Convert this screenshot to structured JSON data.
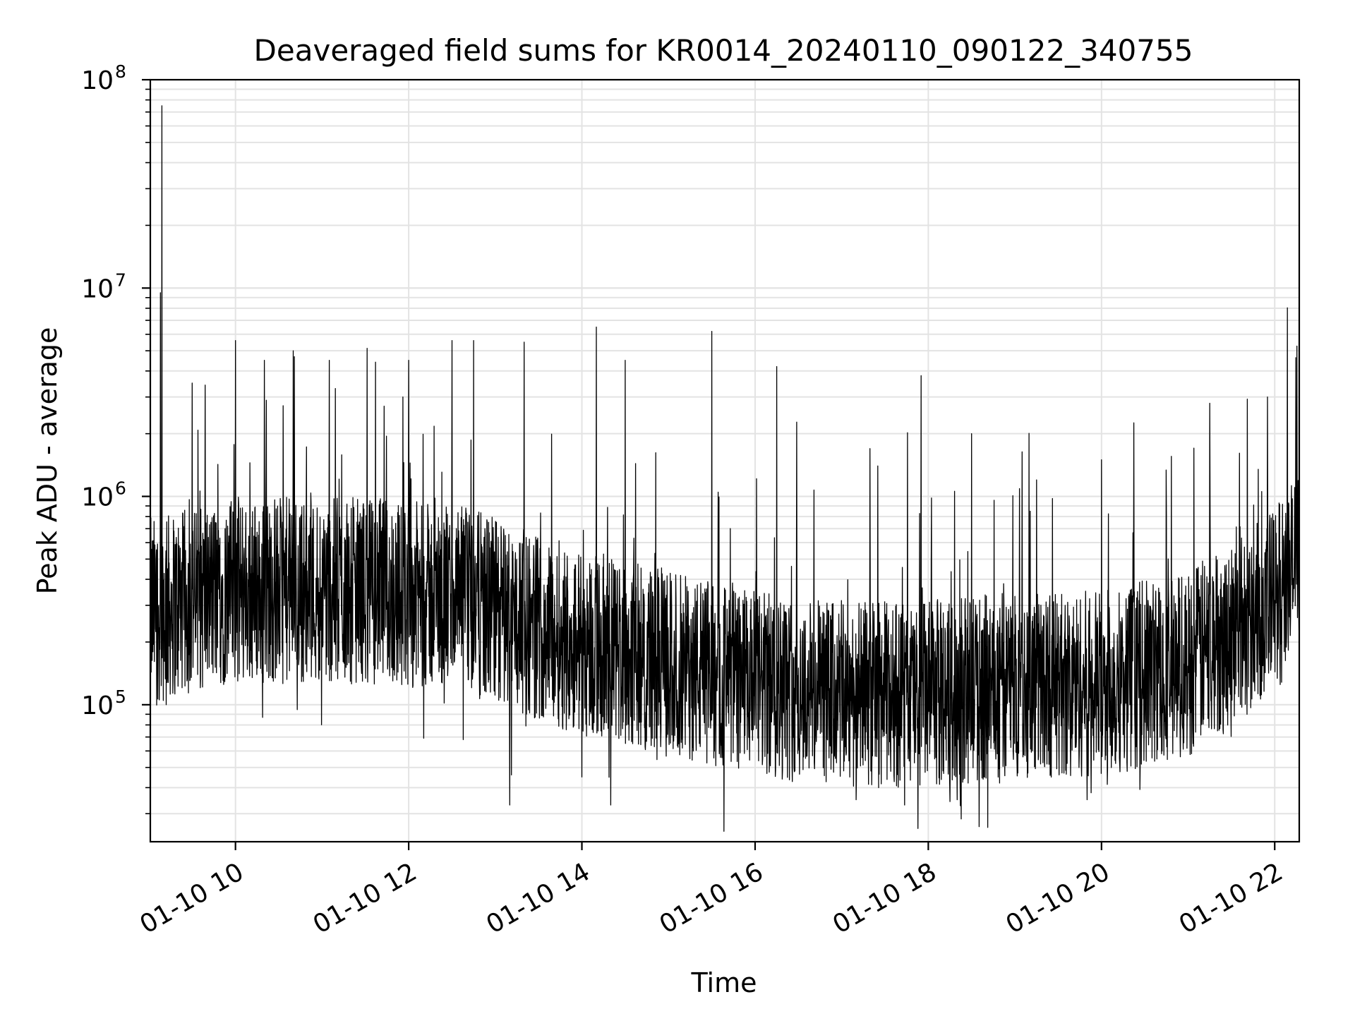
{
  "chart_data": {
    "type": "line",
    "title": "Deaveraged field sums for KR0014_20240110_090122_340755",
    "xlabel": "Time",
    "ylabel": "Peak ADU - average",
    "y_scale": "log",
    "ylim": [
      22000,
      100000000
    ],
    "xlim": [
      "2024-01-10 09:01",
      "2024-01-10 22:17"
    ],
    "x_ticks": [
      "01-10 10",
      "01-10 12",
      "01-10 14",
      "01-10 16",
      "01-10 18",
      "01-10 20",
      "01-10 22"
    ],
    "y_ticks": [
      {
        "base": "10",
        "exp": "5",
        "value": 100000
      },
      {
        "base": "10",
        "exp": "6",
        "value": 1000000
      },
      {
        "base": "10",
        "exp": "7",
        "value": 10000000
      },
      {
        "base": "10",
        "exp": "8",
        "value": 100000000
      }
    ],
    "grid": true,
    "line_color": "#000000",
    "series": [
      {
        "x": [
          "2024-01-10 09:01",
          "2024-01-10 09:05",
          "2024-01-10 09:07",
          "2024-01-10 09:08",
          "2024-01-10 09:09",
          "2024-01-10 09:12",
          "2024-01-10 09:15",
          "2024-01-10 09:20",
          "2024-01-10 09:30",
          "2024-01-10 09:35",
          "2024-01-10 09:45",
          "2024-01-10 09:55",
          "2024-01-10 10:00",
          "2024-01-10 10:20",
          "2024-01-10 10:40",
          "2024-01-10 10:50",
          "2024-01-10 11:05",
          "2024-01-10 11:20",
          "2024-01-10 11:35",
          "2024-01-10 12:00",
          "2024-01-10 12:15",
          "2024-01-10 12:30",
          "2024-01-10 12:45",
          "2024-01-10 13:00",
          "2024-01-10 13:10",
          "2024-01-10 13:20",
          "2024-01-10 13:30",
          "2024-01-10 14:00",
          "2024-01-10 14:10",
          "2024-01-10 14:20",
          "2024-01-10 14:30",
          "2024-01-10 15:00",
          "2024-01-10 15:30",
          "2024-01-10 15:45",
          "2024-01-10 16:00",
          "2024-01-10 16:15",
          "2024-01-10 16:30",
          "2024-01-10 16:55",
          "2024-01-10 17:10",
          "2024-01-10 17:25",
          "2024-01-10 17:55",
          "2024-01-10 18:05",
          "2024-01-10 18:20",
          "2024-01-10 18:30",
          "2024-01-10 18:50",
          "2024-01-10 19:15",
          "2024-01-10 19:45",
          "2024-01-10 19:50",
          "2024-01-10 20:00",
          "2024-01-10 20:30",
          "2024-01-10 21:00",
          "2024-01-10 21:15",
          "2024-01-10 21:30",
          "2024-01-10 21:55",
          "2024-01-10 22:10",
          "2024-01-10 22:17"
        ],
        "y": [
          300000,
          500000,
          200000,
          9500000,
          75000000,
          100000,
          250000,
          300000,
          3500000,
          350000,
          400000,
          600000,
          5600000,
          4500000,
          5000000,
          350000,
          4500000,
          500000,
          300000,
          4500000,
          300000,
          5600000,
          5600000,
          300000,
          33000,
          5500000,
          250000,
          45000,
          6500000,
          33000,
          4500000,
          150000,
          6200000,
          200000,
          100000,
          4200000,
          150000,
          130000,
          35000,
          1400000,
          3800000,
          200000,
          35000,
          2000000,
          150000,
          1200000,
          200000,
          35000,
          1500000,
          300000,
          150000,
          2800000,
          200000,
          3000000,
          600000,
          3800000
        ]
      }
    ]
  }
}
